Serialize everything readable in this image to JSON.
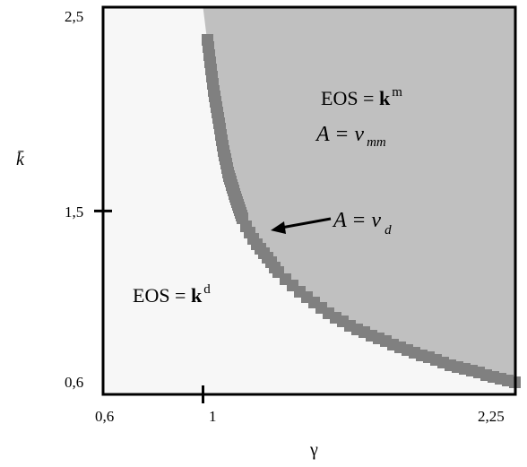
{
  "chart_data": {
    "type": "heatmap",
    "title": "",
    "xlabel": "γ",
    "ylabel": "k̄",
    "xlim": [
      0.6,
      2.25
    ],
    "ylim": [
      0.6,
      2.5
    ],
    "x_ticks": [
      {
        "value": 0.6,
        "label": "0,6"
      },
      {
        "value": 1,
        "label": "1"
      },
      {
        "value": 2.25,
        "label": "2,25"
      }
    ],
    "y_ticks": [
      {
        "value": 0.6,
        "label": "0,6"
      },
      {
        "value": 1.5,
        "label": "1,5"
      },
      {
        "value": 2.5,
        "label": "2,5"
      }
    ],
    "boundary_x": [
      1.0,
      1.02,
      1.04,
      1.06,
      1.08,
      1.1,
      1.13,
      1.16,
      1.2,
      1.25,
      1.3,
      1.36,
      1.43,
      1.5,
      1.58,
      1.67,
      1.77,
      1.88,
      2.0,
      2.12,
      2.25
    ],
    "boundary_y": [
      2.5,
      2.3,
      2.1,
      1.95,
      1.8,
      1.68,
      1.56,
      1.45,
      1.36,
      1.28,
      1.2,
      1.13,
      1.06,
      1.0,
      0.94,
      0.89,
      0.84,
      0.79,
      0.74,
      0.7,
      0.66
    ],
    "regions": {
      "upper": {
        "eos_prefix": "EOS = ",
        "eos_bold": "k",
        "eos_sup": "m",
        "a_prefix": "A = ",
        "a_var": "v",
        "a_sub": "mm",
        "color": "#c0c0c0"
      },
      "lower": {
        "eos_prefix": "EOS = ",
        "eos_bold": "k",
        "eos_sup": "d",
        "color": "#f7f7f7"
      },
      "boundary": {
        "a_prefix": "A = ",
        "a_var": "v",
        "a_sub": "d",
        "color": "#808080"
      }
    }
  }
}
